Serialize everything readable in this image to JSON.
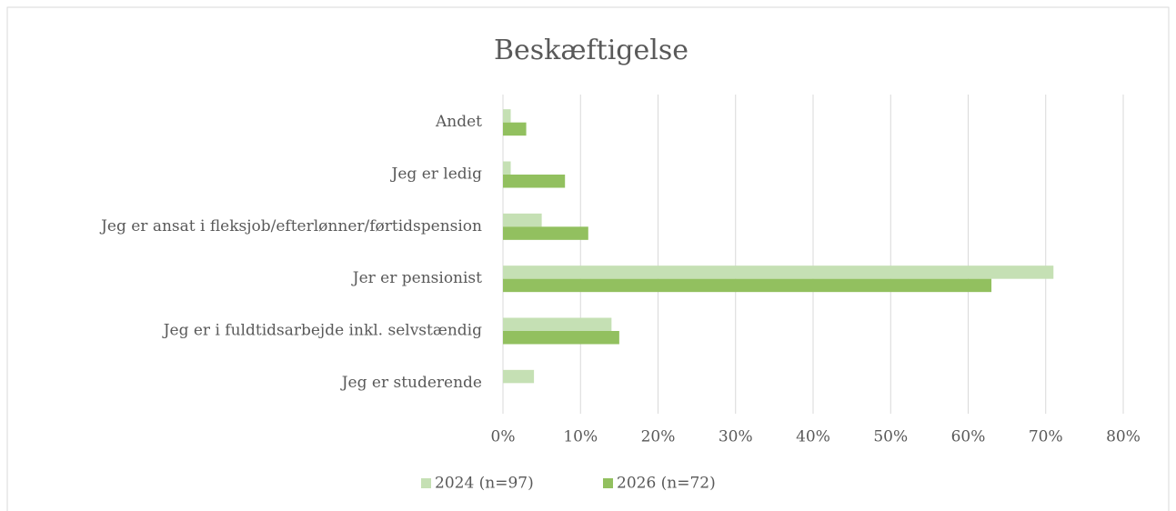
{
  "chart_data": {
    "type": "bar",
    "orientation": "horizontal",
    "title": "Beskæftigelse",
    "categories": [
      "Andet",
      "Jeg er ledig",
      "Jeg er ansat i fleksjob/efterlønner/førtidspension",
      "Jer er pensionist",
      "Jeg er i fuldtidsarbejde inkl. selvstændig",
      "Jeg er studerende"
    ],
    "series": [
      {
        "name": "2024 (n=97)",
        "color": "#c5e0b4",
        "values": [
          1,
          1,
          5,
          71,
          14,
          4
        ]
      },
      {
        "name": "2026 (n=72)",
        "color": "#92c05f",
        "values": [
          3,
          8,
          11,
          63,
          15,
          0
        ]
      }
    ],
    "xlim": [
      0,
      80
    ],
    "xticks": [
      {
        "value": 0,
        "label": "0%"
      },
      {
        "value": 10,
        "label": "10%"
      },
      {
        "value": 20,
        "label": "20%"
      },
      {
        "value": 30,
        "label": "30%"
      },
      {
        "value": 40,
        "label": "40%"
      },
      {
        "value": 50,
        "label": "50%"
      },
      {
        "value": 60,
        "label": "60%"
      },
      {
        "value": 70,
        "label": "70%"
      },
      {
        "value": 80,
        "label": "80%"
      }
    ],
    "grid": true,
    "legend": "bottom"
  }
}
